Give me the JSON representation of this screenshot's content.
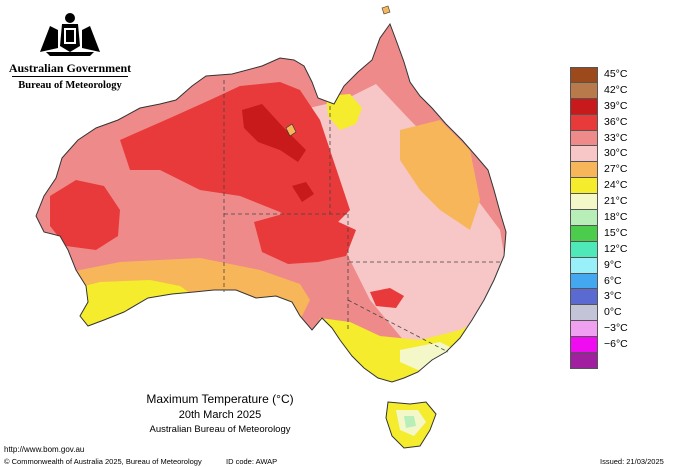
{
  "header": {
    "government": "Australian Government",
    "bureau": "Bureau of Meteorology"
  },
  "legend": {
    "items": [
      {
        "label": "45°C",
        "color": "#9c4a1c"
      },
      {
        "label": "42°C",
        "color": "#b87a4a"
      },
      {
        "label": "39°C",
        "color": "#c81a1a"
      },
      {
        "label": "36°C",
        "color": "#e83a3a"
      },
      {
        "label": "33°C",
        "color": "#ef8a8a"
      },
      {
        "label": "30°C",
        "color": "#f7c6c6"
      },
      {
        "label": "27°C",
        "color": "#f7b65a"
      },
      {
        "label": "24°C",
        "color": "#f4ec2c"
      },
      {
        "label": "21°C",
        "color": "#f4f8c8"
      },
      {
        "label": "18°C",
        "color": "#b8eeb8"
      },
      {
        "label": "15°C",
        "color": "#4ccc4c"
      },
      {
        "label": "12°C",
        "color": "#4fe8b8"
      },
      {
        "label": "9°C",
        "color": "#9af0f8"
      },
      {
        "label": "6°C",
        "color": "#44a8f0"
      },
      {
        "label": "3°C",
        "color": "#5a6ad0"
      },
      {
        "label": "0°C",
        "color": "#c4c4d8"
      },
      {
        "label": "−3°C",
        "color": "#f0a0f0"
      },
      {
        "label": "−6°C",
        "color": "#f00cf0"
      },
      {
        "label": "",
        "color": "#a020a0"
      }
    ]
  },
  "caption": {
    "line1": "Maximum Temperature (°C)",
    "line2": "20th March 2025",
    "line3": "Australian Bureau of Meteorology"
  },
  "footer": {
    "url": "http://www.bom.gov.au",
    "copyright": "© Commonwealth of Australia 2025, Bureau of Meteorology",
    "id_code": "ID code: AWAP",
    "issued": "Issued: 21/03/2025"
  }
}
